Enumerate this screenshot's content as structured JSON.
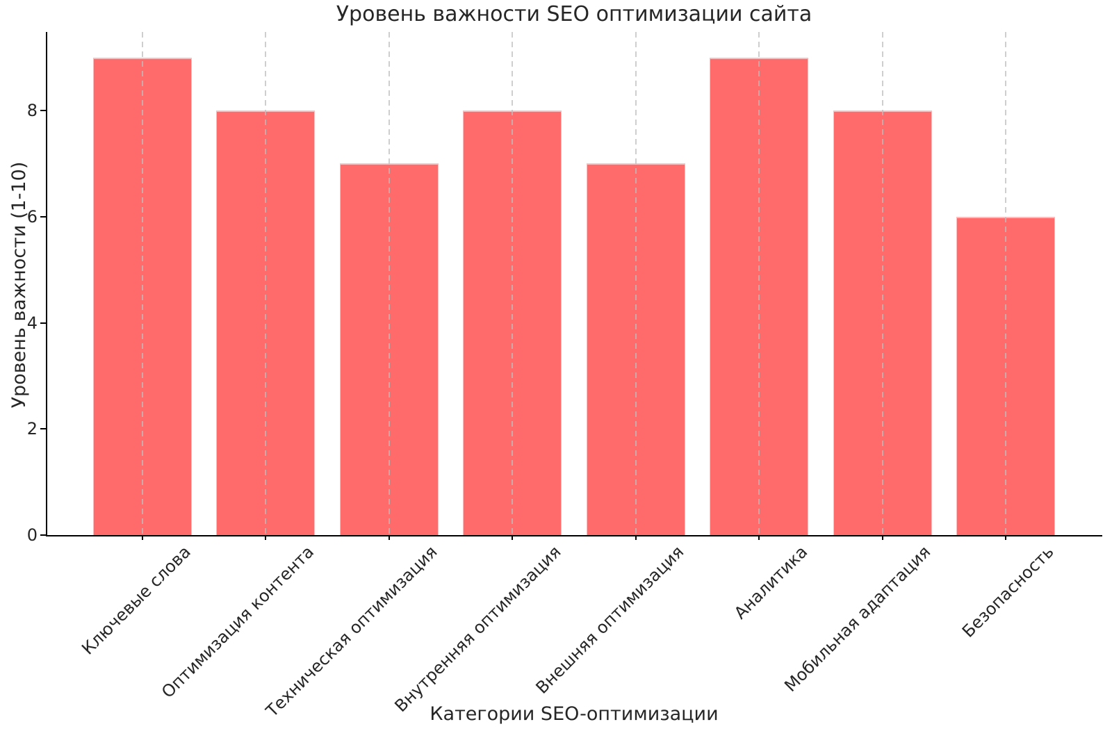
{
  "chart_data": {
    "type": "bar",
    "title": "Уровень важности SEO оптимизации сайта",
    "xlabel": "Категории SEO-оптимизации",
    "ylabel": "Уровень важности (1-10)",
    "categories": [
      "Ключевые слова",
      "Оптимизация контента",
      "Техническая оптимизация",
      "Внутренняя оптимизация",
      "Внешняя оптимизация",
      "Аналитика",
      "Мобильная адаптация",
      "Безопасность"
    ],
    "values": [
      9,
      8,
      7,
      8,
      7,
      9,
      8,
      6
    ],
    "yticks": [
      0,
      2,
      4,
      6,
      8
    ],
    "ylim": [
      0,
      9.48
    ],
    "bar_color": "#ff6b6b",
    "bar_edge_color": "rgba(255,255,255,0.55)",
    "grid": {
      "orientation": "vertical",
      "style": "dashed",
      "positions": "category-centers",
      "color": "#bebebe"
    },
    "legend": "none",
    "axis_color": "#000000",
    "text_color": "#262626",
    "background_color": "#ffffff"
  }
}
